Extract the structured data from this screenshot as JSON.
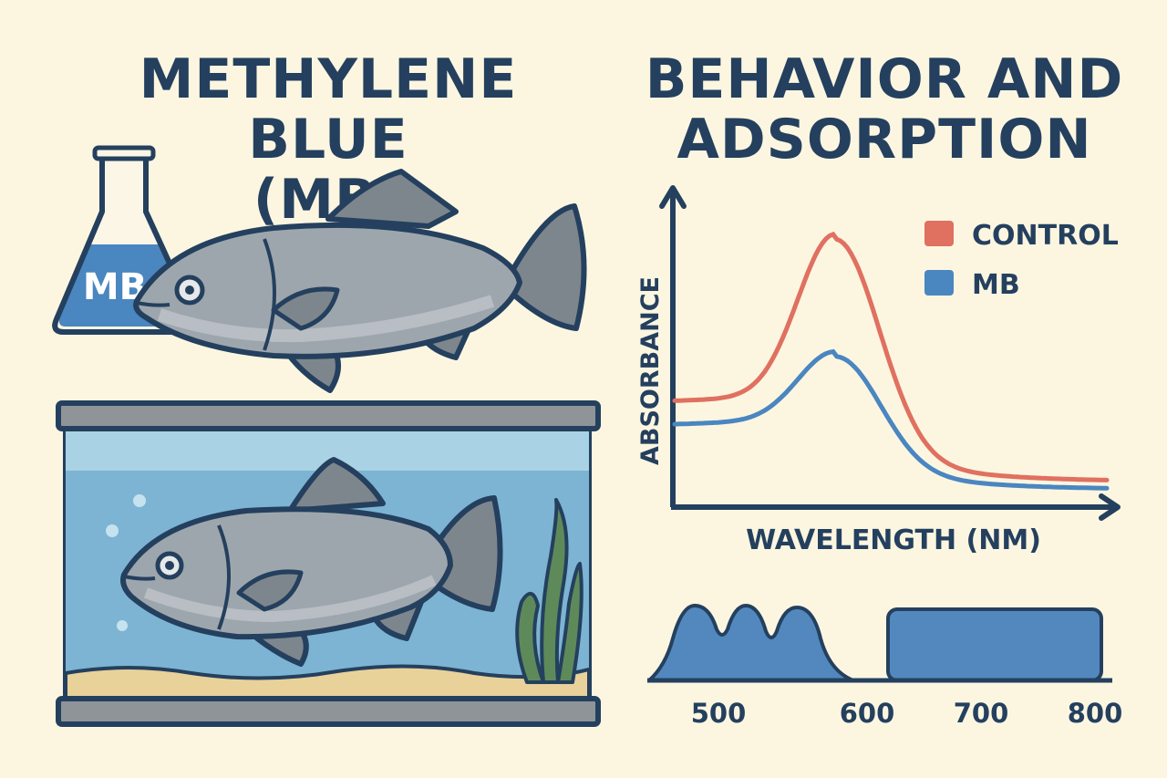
{
  "left_title": {
    "line1": "METHYLENE BLUE",
    "line2": "(MB)"
  },
  "right_title": {
    "line1": "BEHAVIOR AND",
    "line2": "ADSORPTION"
  },
  "flask": {
    "label": "MB"
  },
  "colors": {
    "background": "#FCF6E1",
    "outline": "#24405E",
    "control": "#E07060",
    "mb": "#4A86C0",
    "water": "#7DB4D3",
    "fish": "#9EA6AD",
    "sand": "#E9D19A",
    "plant": "#5E8A5A",
    "band": "#5288BD"
  },
  "chart_data": [
    {
      "type": "line",
      "xlabel": "WAVELENGTH (NM)",
      "ylabel": "ABSORBANCE",
      "legend_position": "top-right",
      "series": [
        {
          "name": "CONTROL",
          "color": "#E07060",
          "kind": "peak",
          "peak": 1.0,
          "baseline": 0.38,
          "tail": 0.07
        },
        {
          "name": "MB",
          "color": "#4A86C0",
          "kind": "peak",
          "peak": 0.55,
          "baseline": 0.29,
          "tail": 0.04
        }
      ]
    },
    {
      "type": "area",
      "x_ticks": [
        "500",
        "600",
        "700",
        "800"
      ],
      "bands": [
        {
          "range": [
            440,
            605
          ],
          "peaks": 3
        },
        {
          "range": [
            615,
            830
          ],
          "shape": "plateau"
        }
      ]
    }
  ]
}
